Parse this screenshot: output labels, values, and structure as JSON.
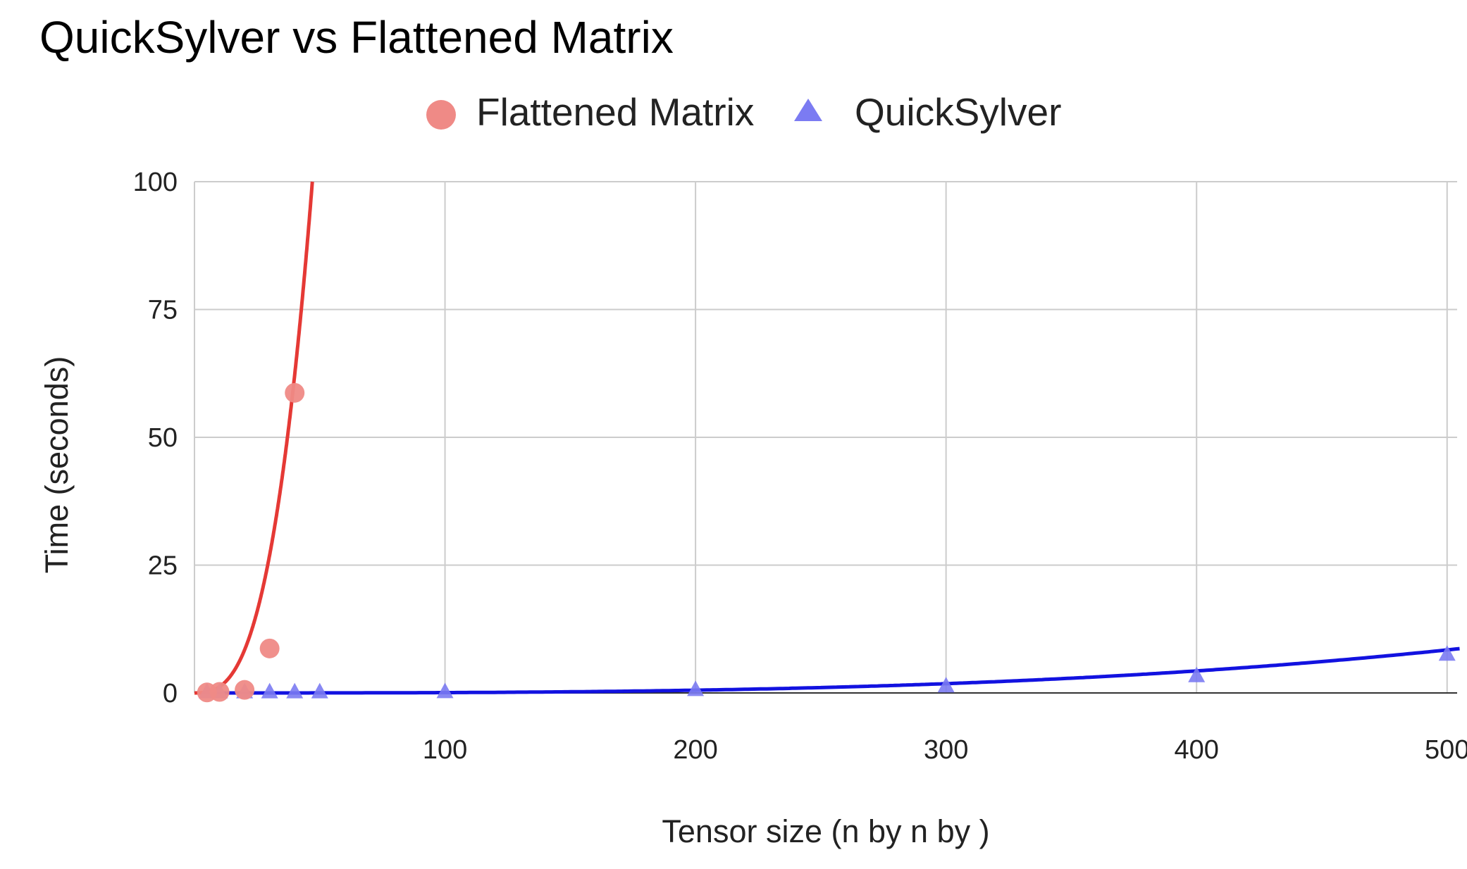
{
  "chart_data": {
    "type": "scatter",
    "title": "QuickSylver vs Flattened Matrix",
    "xlabel": "Tensor size (n by n by )",
    "ylabel": "Time (seconds)",
    "xlim": [
      0,
      505
    ],
    "ylim": [
      0,
      100
    ],
    "x_ticks": [
      100,
      200,
      300,
      400,
      500
    ],
    "y_ticks": [
      0,
      25,
      50,
      75,
      100
    ],
    "grid": true,
    "legend_position": "top",
    "series": [
      {
        "name": "Flattened Matrix",
        "marker": "circle",
        "marker_color": "#ef8a86",
        "trendline_color": "#e53935",
        "trendline_type": "polynomial",
        "trendline_coefficients": [
          0.000892,
          0.0032,
          0.000166,
          0.001
        ],
        "x": [
          5,
          10,
          20,
          30,
          40
        ],
        "y": [
          0.1,
          0.2,
          0.6,
          8.7,
          58.7
        ]
      },
      {
        "name": "QuickSylver",
        "marker": "triangle",
        "marker_color": "#7b7bf2",
        "trendline_color": "#1212e0",
        "trendline_type": "polynomial",
        "trendline_coefficients": [
          6.72e-08,
          5.12e-08,
          2.64e-06,
          0.0
        ],
        "x": [
          5,
          10,
          20,
          30,
          40,
          50,
          100,
          200,
          300,
          400,
          500
        ],
        "y": [
          0.05,
          0.05,
          0.05,
          0.05,
          0.05,
          0.05,
          0.08,
          0.5,
          1.2,
          3.2,
          7.4
        ]
      }
    ]
  }
}
